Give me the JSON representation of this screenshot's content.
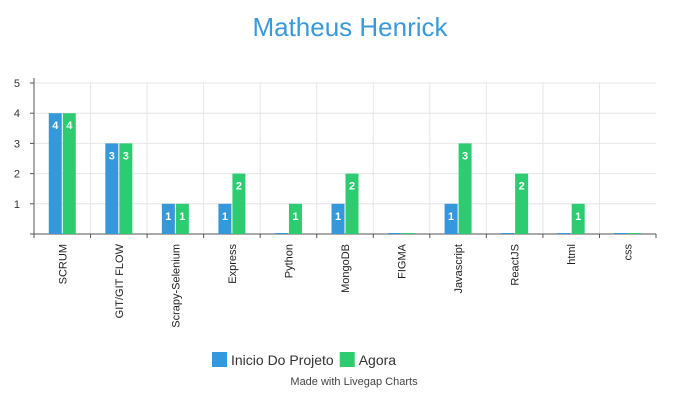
{
  "chart_data": {
    "type": "bar",
    "title": "Matheus Henrick",
    "categories": [
      "SCRUM",
      "GIT/GIT FLOW",
      "Scrapy-Selenium",
      "Express",
      "Python",
      "MongoDB",
      "FIGMA",
      "Javascript",
      "ReactJS",
      "html",
      "css"
    ],
    "series": [
      {
        "name": "Inicio Do Projeto",
        "color": "#3498db",
        "values": [
          4,
          3,
          1,
          1,
          0,
          1,
          0,
          1,
          0,
          0,
          0
        ]
      },
      {
        "name": "Agora",
        "color": "#2ecc71",
        "values": [
          4,
          3,
          1,
          2,
          1,
          2,
          0,
          3,
          2,
          1,
          0
        ]
      }
    ],
    "ylim": [
      0,
      5
    ],
    "yticks": [
      1,
      2,
      3,
      4,
      5
    ],
    "grid": true,
    "legend": "bottom-center",
    "data_labels": true
  },
  "footer": {
    "credit": "Made with Livegap Charts"
  },
  "colors": {
    "title": "#3a9ad9",
    "axis": "#555555",
    "grid": "#e6e6e6"
  }
}
